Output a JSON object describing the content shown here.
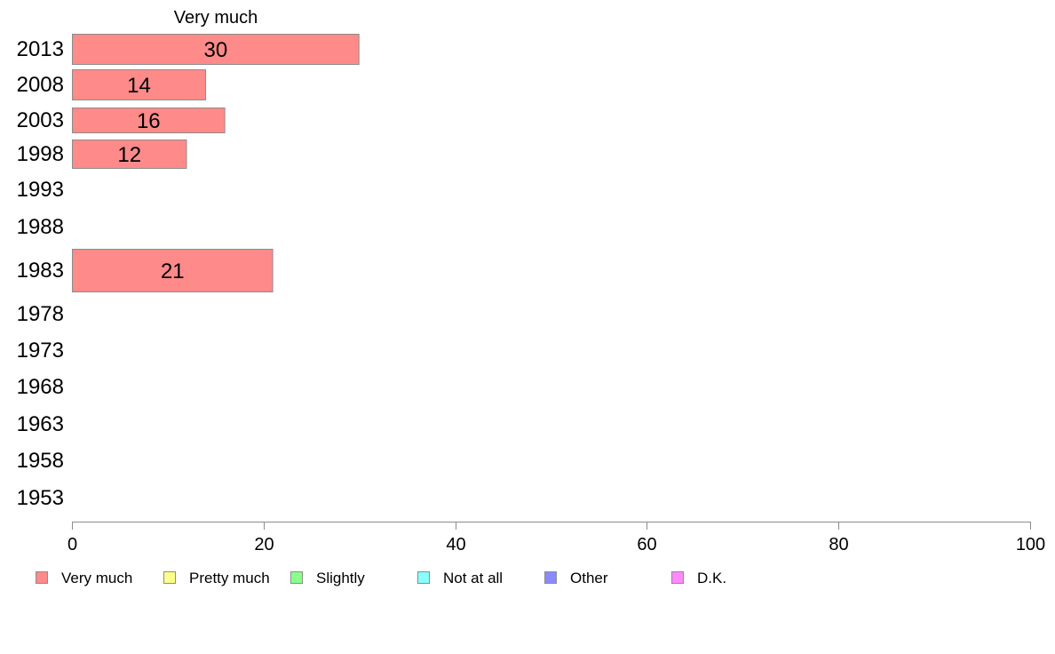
{
  "chart_data": {
    "type": "bar",
    "orientation": "horizontal",
    "stacked": true,
    "categories": [
      "2013",
      "2008",
      "2003",
      "1998",
      "1993",
      "1988",
      "1983",
      "1978",
      "1973",
      "1968",
      "1963",
      "1958",
      "1953"
    ],
    "series": [
      {
        "name": "Very much",
        "color": "#ff8a8a",
        "values": [
          30,
          14,
          16,
          12,
          null,
          null,
          21,
          null,
          null,
          null,
          null,
          null,
          null
        ],
        "data_labels": [
          "30",
          "14",
          "16",
          "12",
          "",
          "",
          "21",
          "",
          "",
          "",
          "",
          "",
          ""
        ]
      },
      {
        "name": "Pretty much",
        "color": "#ffff8a",
        "values": [
          null,
          null,
          null,
          null,
          null,
          null,
          null,
          null,
          null,
          null,
          null,
          null,
          null
        ]
      },
      {
        "name": "Slightly",
        "color": "#8aff8a",
        "values": [
          null,
          null,
          null,
          null,
          null,
          null,
          null,
          null,
          null,
          null,
          null,
          null,
          null
        ]
      },
      {
        "name": "Not at all",
        "color": "#8affff",
        "values": [
          null,
          null,
          null,
          null,
          null,
          null,
          null,
          null,
          null,
          null,
          null,
          null,
          null
        ]
      },
      {
        "name": "Other",
        "color": "#8a8aff",
        "values": [
          null,
          null,
          null,
          null,
          null,
          null,
          null,
          null,
          null,
          null,
          null,
          null,
          null
        ]
      },
      {
        "name": "D.K.",
        "color": "#ff8aff",
        "values": [
          null,
          null,
          null,
          null,
          null,
          null,
          null,
          null,
          null,
          null,
          null,
          null,
          null
        ]
      }
    ],
    "series_header": "Very much",
    "xlim": [
      0,
      100
    ],
    "xticks": [
      "0",
      "20",
      "40",
      "60",
      "80",
      "100"
    ],
    "xlabel": "",
    "ylabel": "",
    "title": "",
    "grid": false,
    "legend_position": "bottom"
  }
}
